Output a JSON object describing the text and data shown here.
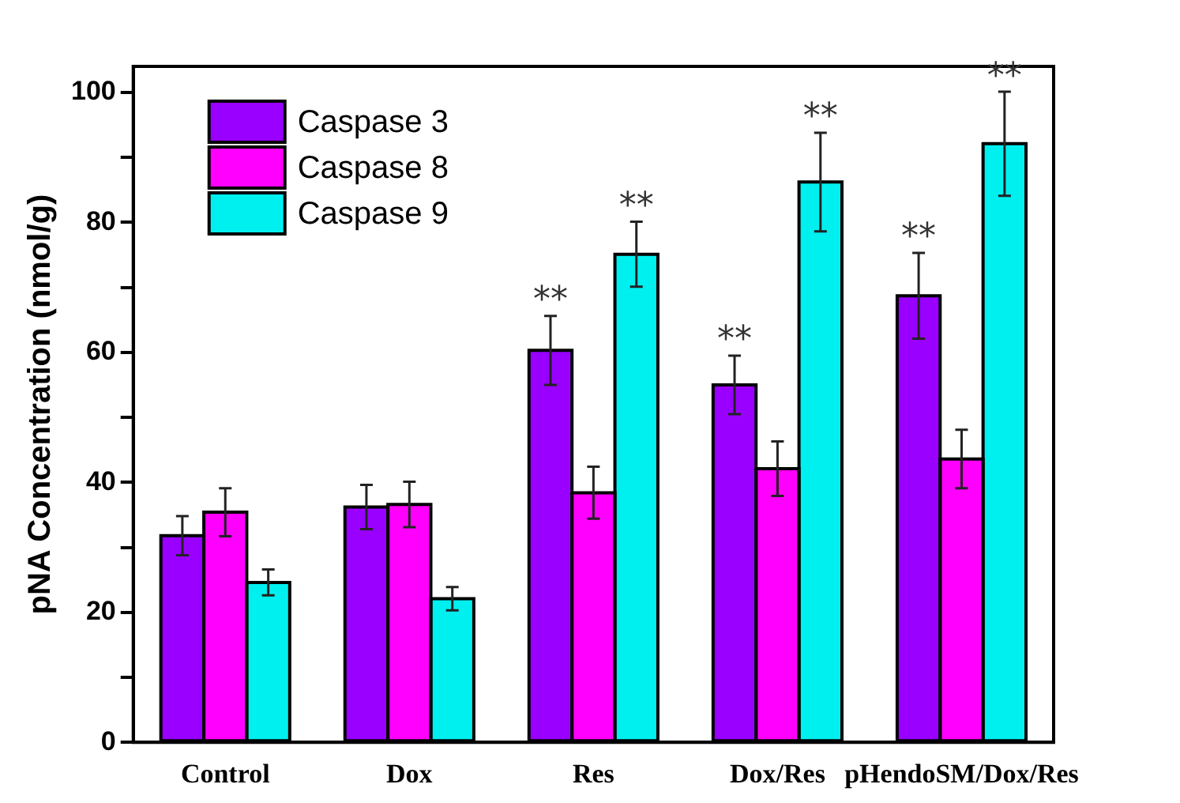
{
  "chart_data": {
    "type": "bar",
    "ylabel": "pNA Concentration (nmol/g)",
    "categories": [
      "Control",
      "Dox",
      "Res",
      "Dox/Res",
      "pHendoSM/Dox/Res"
    ],
    "series": [
      {
        "name": "Caspase 3",
        "color": "#9900ff",
        "values": [
          31.8,
          36.2,
          60.3,
          55.0,
          68.7
        ],
        "errors": [
          3.0,
          3.4,
          5.3,
          4.5,
          6.6
        ],
        "value_labels": [
          null,
          null,
          "**",
          "**",
          "**"
        ]
      },
      {
        "name": "Caspase 8",
        "color": "#ff00ff",
        "values": [
          35.4,
          36.6,
          38.4,
          42.1,
          43.6
        ],
        "errors": [
          3.7,
          3.5,
          4.0,
          4.2,
          4.5
        ]
      },
      {
        "name": "Caspase 9",
        "color": "#00f0f0",
        "values": [
          24.6,
          22.1,
          75.1,
          86.2,
          92.1
        ],
        "errors": [
          2.0,
          1.8,
          5.0,
          7.6,
          8.0
        ],
        "value_labels": [
          null,
          null,
          "**",
          "**",
          "**"
        ]
      }
    ],
    "ylim": [
      0,
      104
    ],
    "yticks": [
      0,
      {
        "value": 10,
        "label": null
      },
      20,
      {
        "value": 30,
        "label": null
      },
      40,
      {
        "value": 50,
        "label": null
      },
      60,
      {
        "value": 70,
        "label": null
      },
      80,
      {
        "value": 90,
        "label": null
      },
      100
    ],
    "grid": false,
    "legend": "top left"
  }
}
